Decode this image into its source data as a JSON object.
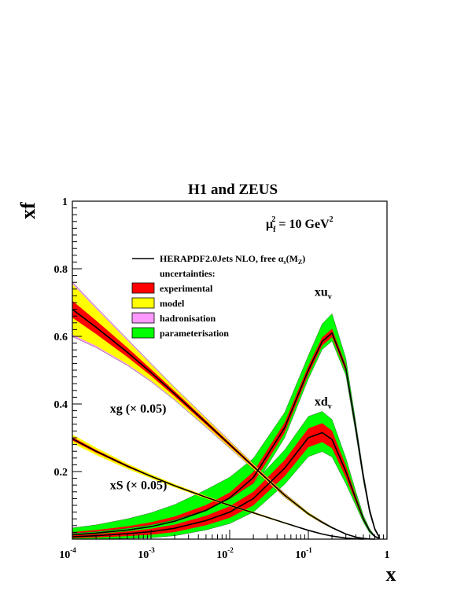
{
  "chart_data": {
    "type": "line",
    "title": "H1 and ZEUS",
    "ylabel": "xf",
    "xlabel": "x",
    "scale_annotation": {
      "main": "μ",
      "sub": "f",
      "sup": "2",
      "rest": " = 10 GeV",
      "rest_sup": "2"
    },
    "xscale": "log",
    "xlim": [
      0.0001,
      1
    ],
    "ylim": [
      0,
      1
    ],
    "x_ticks": [
      {
        "value": 0.0001,
        "base": "10",
        "exp": "-4"
      },
      {
        "value": 0.001,
        "base": "10",
        "exp": "-3"
      },
      {
        "value": 0.01,
        "base": "10",
        "exp": "-2"
      },
      {
        "value": 0.1,
        "base": "10",
        "exp": "-1"
      },
      {
        "value": 1,
        "base": "1",
        "exp": ""
      }
    ],
    "y_ticks": [
      {
        "value": 0.2,
        "label": "0.2"
      },
      {
        "value": 0.4,
        "label": "0.4"
      },
      {
        "value": 0.6,
        "label": "0.6"
      },
      {
        "value": 0.8,
        "label": "0.8"
      },
      {
        "value": 1.0,
        "label": "1"
      }
    ],
    "grid": false,
    "legend": {
      "placement": "top-right",
      "central_label": "HERAPDF2.0Jets NLO, free  α",
      "central_sub": "s",
      "central_tail": "(M",
      "central_tail_sub": "Z",
      "central_close": ")",
      "header": "uncertainties:",
      "items": [
        {
          "label": "experimental",
          "color": "#ff0000"
        },
        {
          "label": "model",
          "color": "#ffff00"
        },
        {
          "label": "hadronisation",
          "color": "#ff99ff"
        },
        {
          "label": "parameterisation",
          "color": "#00ff00"
        }
      ]
    },
    "colors": {
      "experimental": "#ff0000",
      "model": "#ffff00",
      "hadronisation": "#ff99ff",
      "parameterisation": "#00ff00",
      "central": "#000000"
    },
    "series": [
      {
        "name": "xu",
        "name_sub": "v",
        "label_x": 0.12,
        "label_y": 0.72,
        "x": [
          0.0001,
          0.0002,
          0.0005,
          0.001,
          0.002,
          0.005,
          0.01,
          0.02,
          0.05,
          0.1,
          0.15,
          0.2,
          0.3,
          0.4,
          0.5,
          0.6,
          0.7,
          0.8
        ],
        "central": [
          0.013,
          0.018,
          0.027,
          0.037,
          0.053,
          0.085,
          0.122,
          0.182,
          0.33,
          0.5,
          0.585,
          0.61,
          0.505,
          0.33,
          0.185,
          0.085,
          0.03,
          0.005
        ],
        "exp": [
          0.008,
          0.009,
          0.011,
          0.013,
          0.014,
          0.016,
          0.016,
          0.017,
          0.015,
          0.013,
          0.012,
          0.012,
          0.01,
          0.008,
          0.006,
          0.004,
          0.002,
          0.001
        ],
        "param_hi": [
          0.012,
          0.015,
          0.022,
          0.028,
          0.035,
          0.045,
          0.045,
          0.04,
          0.03,
          0.03,
          0.04,
          0.045,
          0.02,
          0.01,
          0.006,
          0.004,
          0.002,
          0.001
        ],
        "param_lo": [
          0.005,
          0.005,
          0.006,
          0.007,
          0.008,
          0.01,
          0.012,
          0.015,
          0.015,
          0.013,
          0.012,
          0.012,
          0.01,
          0.008,
          0.006,
          0.004,
          0.002,
          0.001
        ]
      },
      {
        "name": "xd",
        "name_sub": "v",
        "label_x": 0.12,
        "label_y": 0.395,
        "x": [
          0.0001,
          0.0002,
          0.0005,
          0.001,
          0.002,
          0.005,
          0.01,
          0.02,
          0.05,
          0.1,
          0.15,
          0.2,
          0.3,
          0.4,
          0.5,
          0.6,
          0.7,
          0.8
        ],
        "central": [
          0.007,
          0.01,
          0.016,
          0.022,
          0.032,
          0.055,
          0.08,
          0.12,
          0.21,
          0.3,
          0.315,
          0.295,
          0.2,
          0.12,
          0.06,
          0.025,
          0.008,
          0.002
        ],
        "exp": [
          0.004,
          0.005,
          0.007,
          0.009,
          0.011,
          0.014,
          0.017,
          0.02,
          0.024,
          0.028,
          0.028,
          0.026,
          0.018,
          0.01,
          0.005,
          0.003,
          0.001,
          0.0005
        ],
        "param_hi": [
          0.006,
          0.007,
          0.009,
          0.011,
          0.014,
          0.018,
          0.022,
          0.025,
          0.03,
          0.035,
          0.035,
          0.033,
          0.022,
          0.012,
          0.006,
          0.003,
          0.001,
          0.0005
        ],
        "param_lo": [
          0.004,
          0.005,
          0.007,
          0.009,
          0.011,
          0.014,
          0.017,
          0.02,
          0.024,
          0.028,
          0.028,
          0.026,
          0.018,
          0.01,
          0.005,
          0.003,
          0.001,
          0.0005
        ]
      },
      {
        "name": "xg (× 0.05)",
        "label_x": 0.0003,
        "label_y": 0.375,
        "x": [
          0.0001,
          0.0002,
          0.0005,
          0.001,
          0.002,
          0.005,
          0.01,
          0.02,
          0.05,
          0.1,
          0.15,
          0.2,
          0.3,
          0.4,
          0.5,
          0.6,
          0.7
        ],
        "central": [
          0.68,
          0.627,
          0.553,
          0.493,
          0.43,
          0.345,
          0.28,
          0.215,
          0.13,
          0.075,
          0.05,
          0.034,
          0.015,
          0.006,
          0.002,
          0.0005,
          0.0
        ],
        "exp": [
          0.025,
          0.02,
          0.014,
          0.01,
          0.008,
          0.006,
          0.005,
          0.004,
          0.003,
          0.002,
          0.002,
          0.001,
          0.001,
          0.0005,
          0.0003,
          0.0001,
          0.0
        ],
        "model_hi": [
          0.075,
          0.055,
          0.035,
          0.024,
          0.017,
          0.012,
          0.009,
          0.007,
          0.005,
          0.004,
          0.003,
          0.002,
          0.001,
          0.0005,
          0.0003,
          0.0001,
          0.0
        ],
        "model_lo": [
          0.075,
          0.055,
          0.035,
          0.024,
          0.017,
          0.012,
          0.009,
          0.007,
          0.005,
          0.004,
          0.003,
          0.002,
          0.001,
          0.0005,
          0.0003,
          0.0001,
          0.0
        ],
        "had": [
          0.081,
          0.06,
          0.039,
          0.027,
          0.019,
          0.014,
          0.011,
          0.008,
          0.006,
          0.004,
          0.003,
          0.002,
          0.001,
          0.0005,
          0.0003,
          0.0001,
          0.0
        ]
      },
      {
        "name": "xS (× 0.05)",
        "label_x": 0.0003,
        "label_y": 0.148,
        "x": [
          0.0001,
          0.0002,
          0.0005,
          0.001,
          0.002,
          0.005,
          0.01,
          0.02,
          0.05,
          0.1,
          0.15,
          0.2,
          0.3,
          0.4,
          0.5
        ],
        "central": [
          0.297,
          0.26,
          0.216,
          0.186,
          0.158,
          0.124,
          0.1,
          0.078,
          0.048,
          0.026,
          0.015,
          0.009,
          0.003,
          0.001,
          0.0
        ],
        "exp": [
          0.005,
          0.004,
          0.003,
          0.002,
          0.002,
          0.002,
          0.002,
          0.002,
          0.001,
          0.001,
          0.001,
          0.0005,
          0.0003,
          0.0001,
          0.0
        ],
        "model_hi": [
          0.013,
          0.011,
          0.008,
          0.006,
          0.005,
          0.004,
          0.003,
          0.003,
          0.002,
          0.001,
          0.001,
          0.0005,
          0.0003,
          0.0001,
          0.0
        ],
        "model_lo": [
          0.013,
          0.011,
          0.008,
          0.006,
          0.005,
          0.004,
          0.003,
          0.003,
          0.002,
          0.001,
          0.001,
          0.0005,
          0.0003,
          0.0001,
          0.0
        ]
      }
    ]
  }
}
